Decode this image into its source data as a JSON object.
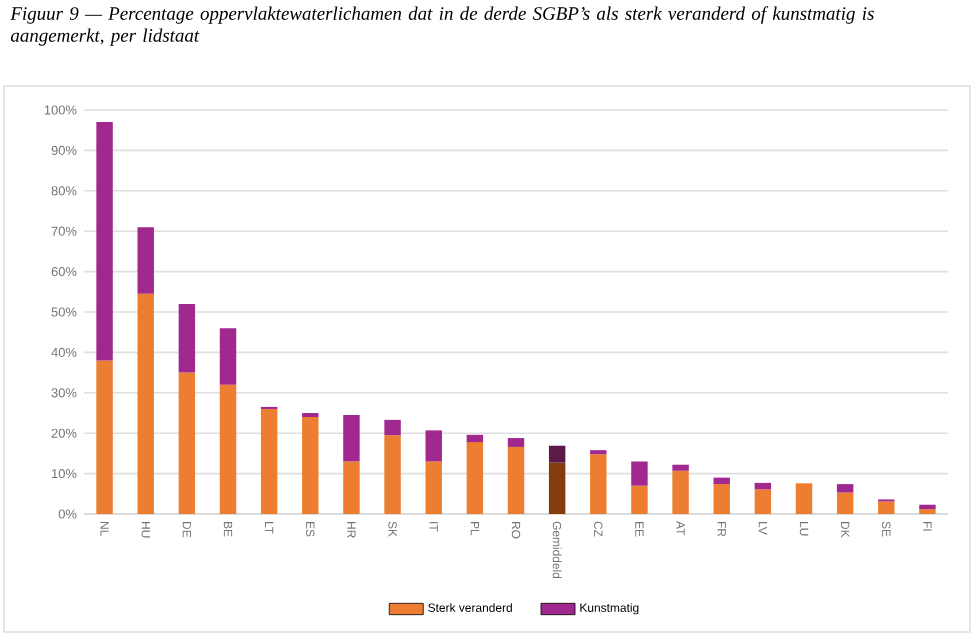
{
  "chart_data": {
    "type": "bar",
    "stacked": true,
    "title": "Figuur 9 — Percentage oppervlaktewaterlichamen dat in de derde SGBP’s als sterk veranderd of kunstmatig is aangemerkt, per lidstaat",
    "categories": [
      "NL",
      "HU",
      "DE",
      "BE",
      "LT",
      "ES",
      "HR",
      "SK",
      "IT",
      "PL",
      "RO",
      "Gemiddeld",
      "CZ",
      "EE",
      "AT",
      "FR",
      "LV",
      "LU",
      "DK",
      "SE",
      "FI"
    ],
    "series": [
      {
        "name": "Sterk veranderd",
        "color": "#ed7d31",
        "colors": [
          "#ed7d31",
          "#ed7d31",
          "#ed7d31",
          "#ed7d31",
          "#ed7d31",
          "#ed7d31",
          "#ed7d31",
          "#ed7d31",
          "#ed7d31",
          "#ed7d31",
          "#ed7d31",
          "#843c0c",
          "#ed7d31",
          "#ed7d31",
          "#ed7d31",
          "#ed7d31",
          "#ed7d31",
          "#ed7d31",
          "#ed7d31",
          "#ed7d31",
          "#ed7d31"
        ],
        "values": [
          38,
          54.5,
          35,
          32,
          26,
          24,
          13,
          19.5,
          13,
          17.8,
          16.6,
          12.7,
          14.8,
          7,
          10.7,
          7.4,
          6.1,
          7.6,
          5.3,
          3.1,
          1.2
        ]
      },
      {
        "name": "Kunstmatig",
        "color": "#a0288f",
        "colors": [
          "#a0288f",
          "#a0288f",
          "#a0288f",
          "#a0288f",
          "#a0288f",
          "#a0288f",
          "#a0288f",
          "#a0288f",
          "#a0288f",
          "#a0288f",
          "#a0288f",
          "#5c1a48",
          "#a0288f",
          "#a0288f",
          "#a0288f",
          "#a0288f",
          "#a0288f",
          "#a0288f",
          "#a0288f",
          "#a0288f",
          "#a0288f"
        ],
        "values": [
          59,
          16.5,
          17,
          14,
          0.5,
          1,
          11.5,
          3.8,
          7.7,
          1.8,
          2.2,
          4.2,
          1,
          6,
          1.5,
          1.6,
          1.6,
          0,
          2.1,
          0.5,
          1.1
        ]
      }
    ],
    "ylim": [
      0,
      100
    ],
    "yticks": [
      {
        "value": 0,
        "label": "0%"
      },
      {
        "value": 10,
        "label": "10%"
      },
      {
        "value": 20,
        "label": "20%"
      },
      {
        "value": 30,
        "label": "30%"
      },
      {
        "value": 40,
        "label": "40%"
      },
      {
        "value": 50,
        "label": "50%"
      },
      {
        "value": 60,
        "label": "60%"
      },
      {
        "value": 70,
        "label": "70%"
      },
      {
        "value": 80,
        "label": "80%"
      },
      {
        "value": 90,
        "label": "90%"
      },
      {
        "value": 100,
        "label": "100%"
      }
    ],
    "grid": "y",
    "legend": "bottom"
  }
}
